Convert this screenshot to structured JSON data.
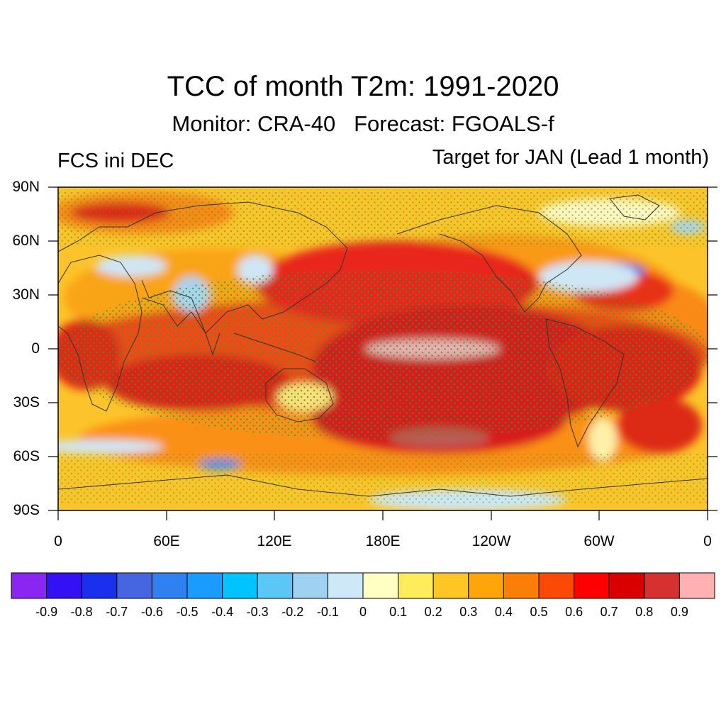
{
  "header": {
    "title": "TCC of month T2m: 1991-2020",
    "subtitle": "Monitor: CRA-40   Forecast: FGOALS-f",
    "left_label": "FCS ini DEC",
    "right_label": "Target for JAN (Lead 1 month)"
  },
  "map": {
    "projection": "cylindrical-equidistant",
    "lat_labels": [
      "90N",
      "60N",
      "30N",
      "0",
      "30S",
      "60S",
      "90S"
    ],
    "lon_labels": [
      "0",
      "60E",
      "120E",
      "180E",
      "120W",
      "60W",
      "0"
    ],
    "background_color": "#f6a915",
    "stipple_color": "#2ca02c"
  },
  "colorbar": {
    "colors": [
      "#8a25f2",
      "#3410f5",
      "#1a30ee",
      "#4566e0",
      "#2f80f0",
      "#1a9bff",
      "#00c3ff",
      "#5ac7f6",
      "#9fd2f0",
      "#cde8f7",
      "#ffffc4",
      "#ffec5a",
      "#fec624",
      "#fea50a",
      "#fd7e06",
      "#fb4a05",
      "#ff0000",
      "#d80000",
      "#d63030",
      "#ffb0b0"
    ],
    "labels": [
      "-0.9",
      "-0.8",
      "-0.7",
      "-0.6",
      "-0.5",
      "-0.4",
      "-0.3",
      "-0.2",
      "-0.1",
      "0",
      "0.1",
      "0.2",
      "0.3",
      "0.4",
      "0.5",
      "0.6",
      "0.7",
      "0.8",
      "0.9"
    ]
  }
}
